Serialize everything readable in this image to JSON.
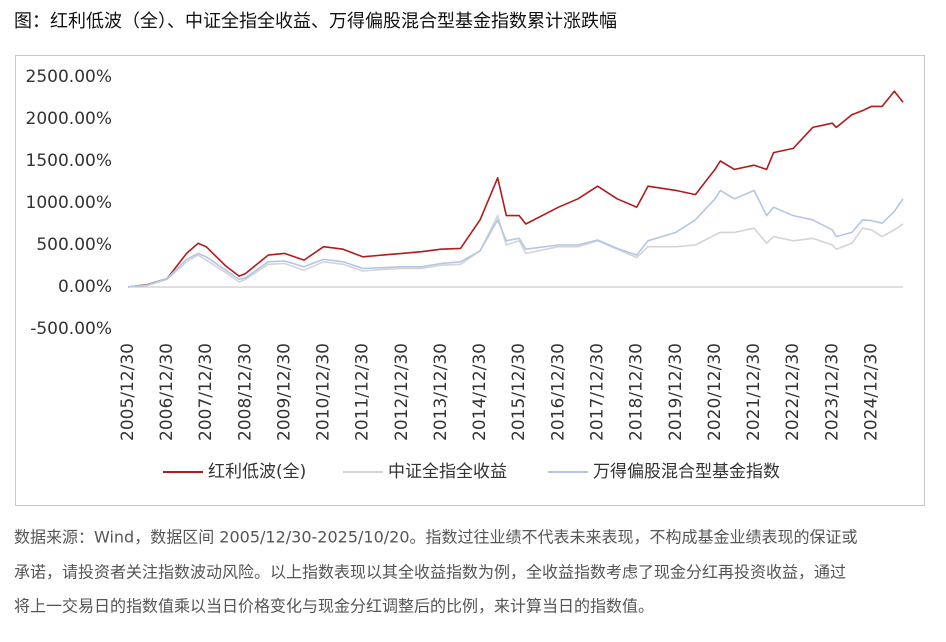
{
  "chart_data": {
    "type": "line",
    "title": "图：红利低波（全）、中证全指全收益、万得偏股混合型基金指数累计涨跌幅",
    "x": [
      "2005/12/30",
      "2006/06/30",
      "2006/12/30",
      "2007/06/30",
      "2007/10/15",
      "2007/12/30",
      "2008/06/30",
      "2008/11/01",
      "2008/12/30",
      "2009/07/31",
      "2009/12/30",
      "2010/06/30",
      "2010/12/30",
      "2011/06/30",
      "2011/12/30",
      "2012/06/30",
      "2012/12/30",
      "2013/06/30",
      "2013/12/30",
      "2014/06/30",
      "2014/12/30",
      "2015/06/12",
      "2015/08/31",
      "2015/12/30",
      "2016/02/29",
      "2016/12/30",
      "2017/06/30",
      "2017/12/30",
      "2018/06/30",
      "2018/12/30",
      "2019/04/15",
      "2019/12/30",
      "2020/06/30",
      "2020/12/30",
      "2021/02/18",
      "2021/06/30",
      "2021/12/30",
      "2022/04/26",
      "2022/06/30",
      "2022/12/30",
      "2023/06/30",
      "2023/12/30",
      "2024/02/05",
      "2024/06/30",
      "2024/10/08",
      "2024/12/30",
      "2025/04/08",
      "2025/07/31",
      "2025/10/20"
    ],
    "series": [
      {
        "name": "红利低波(全)",
        "color": "#b01c1c",
        "values": [
          0,
          30,
          100,
          400,
          520,
          480,
          250,
          130,
          160,
          380,
          400,
          320,
          480,
          450,
          360,
          380,
          400,
          420,
          450,
          460,
          800,
          1300,
          850,
          850,
          750,
          950,
          1050,
          1200,
          1050,
          950,
          1200,
          1150,
          1100,
          1400,
          1500,
          1400,
          1450,
          1400,
          1600,
          1650,
          1900,
          1950,
          1900,
          2050,
          2100,
          2150,
          2150,
          2330,
          2200
        ]
      },
      {
        "name": "中证全指全收益",
        "color": "#d4d4d4",
        "values": [
          0,
          20,
          90,
          300,
          380,
          320,
          170,
          60,
          90,
          270,
          280,
          200,
          300,
          270,
          190,
          210,
          220,
          220,
          260,
          270,
          430,
          850,
          500,
          550,
          400,
          480,
          480,
          550,
          450,
          350,
          480,
          480,
          500,
          620,
          650,
          650,
          700,
          520,
          600,
          550,
          580,
          500,
          450,
          520,
          700,
          680,
          600,
          680,
          750
        ]
      },
      {
        "name": "万得偏股混合型基金指数",
        "color": "#b4c6e7",
        "values": [
          0,
          25,
          100,
          330,
          400,
          360,
          200,
          90,
          110,
          300,
          310,
          240,
          330,
          300,
          220,
          230,
          240,
          240,
          280,
          300,
          430,
          800,
          550,
          580,
          450,
          500,
          500,
          560,
          460,
          380,
          550,
          650,
          800,
          1050,
          1150,
          1050,
          1150,
          850,
          950,
          850,
          800,
          680,
          600,
          650,
          800,
          790,
          760,
          900,
          1050
        ]
      }
    ],
    "xlim": [
      "2005/12/30",
      "2025/10/20"
    ],
    "xticks": [
      "2005/12/30",
      "2006/12/30",
      "2007/12/30",
      "2008/12/30",
      "2009/12/30",
      "2010/12/30",
      "2011/12/30",
      "2012/12/30",
      "2013/12/30",
      "2014/12/30",
      "2015/12/30",
      "2016/12/30",
      "2017/12/30",
      "2018/12/30",
      "2019/12/30",
      "2020/12/30",
      "2021/12/30",
      "2022/12/30",
      "2023/12/30",
      "2024/12/30"
    ],
    "ylim": [
      -500,
      2500
    ],
    "yticks": [
      {
        "value": -500,
        "label": "-500.00%"
      },
      {
        "value": 0,
        "label": "0.00%"
      },
      {
        "value": 500,
        "label": "500.00%"
      },
      {
        "value": 1000,
        "label": "1000.00%"
      },
      {
        "value": 1500,
        "label": "1500.00%"
      },
      {
        "value": 2000,
        "label": "2000.00%"
      },
      {
        "value": 2500,
        "label": "2500.00%"
      }
    ],
    "legend": "bottom",
    "footnote": [
      "数据来源：Wind，数据区间 2005/12/30-2025/10/20。指数过往业绩不代表未来表现，不构成基金业绩表现的保证或",
      "承诺，请投资者关注指数波动风险。以上指数表现以其全收益指数为例，全收益指数考虑了现金分红再投资收益，通过",
      "将上一交易日的指数值乘以当日价格变化与现金分红调整后的比例，来计算当日的指数值。"
    ]
  }
}
